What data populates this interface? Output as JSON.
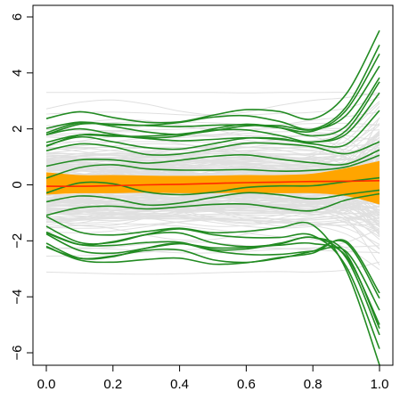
{
  "chart_data": {
    "type": "line",
    "title": "",
    "xlabel": "",
    "ylabel": "",
    "xlim": [
      0.0,
      1.0
    ],
    "ylim": [
      -6,
      6
    ],
    "x_ticks": [
      0.0,
      0.2,
      0.4,
      0.6,
      0.8,
      1.0
    ],
    "x_tick_labels": [
      "0.0",
      "0.2",
      "0.4",
      "0.6",
      "0.8",
      "1.0"
    ],
    "y_ticks": [
      -6,
      -4,
      -2,
      0,
      2,
      4,
      6
    ],
    "y_tick_labels": [
      "−6",
      "−4",
      "−2",
      "0",
      "2",
      "4",
      "6"
    ],
    "grid": false,
    "legend": "none",
    "colors": {
      "background_curves": "#e0e0e0",
      "highlighted_curves": "#228b22",
      "central_band": "#ffa500",
      "median_line": "#ff2a00"
    },
    "x": [
      0.0,
      0.1,
      0.2,
      0.3,
      0.4,
      0.5,
      0.6,
      0.7,
      0.8,
      0.9,
      1.0
    ],
    "band": {
      "lower": [
        -0.35,
        -0.3,
        -0.3,
        -0.28,
        -0.3,
        -0.3,
        -0.28,
        -0.3,
        -0.3,
        -0.4,
        -0.7
      ],
      "upper": [
        0.45,
        0.35,
        0.35,
        0.33,
        0.32,
        0.33,
        0.35,
        0.35,
        0.4,
        0.6,
        0.85
      ]
    },
    "median": [
      -0.05,
      -0.05,
      -0.03,
      0.0,
      0.02,
      0.05,
      0.08,
      0.1,
      0.12,
      0.13,
      0.15
    ],
    "highlighted_groups": [
      {
        "center": [
          1.75,
          2.05,
          1.95,
          1.85,
          1.85,
          2.0,
          2.1,
          2.0,
          1.8,
          2.3,
          4.1
        ],
        "offsets": [
          0.5,
          0.3,
          0.15,
          0.05,
          -0.05,
          -0.15,
          -0.3,
          -0.45
        ]
      },
      {
        "center": [
          -1.8,
          -2.3,
          -2.3,
          -2.1,
          -2.0,
          -2.25,
          -2.3,
          -2.2,
          -2.05,
          -2.5,
          -5.0
        ],
        "offsets": [
          0.55,
          0.35,
          0.2,
          0.05,
          -0.05,
          -0.2,
          -0.35,
          -0.5
        ]
      },
      {
        "center": [
          0.0,
          0.3,
          0.3,
          0.1,
          0.1,
          0.2,
          0.3,
          0.25,
          0.2,
          0.3,
          0.6
        ],
        "offsets": [
          1.1,
          0.7,
          0.35,
          -0.35,
          -0.7,
          -1.0
        ]
      }
    ],
    "background_curve_count": 200
  }
}
